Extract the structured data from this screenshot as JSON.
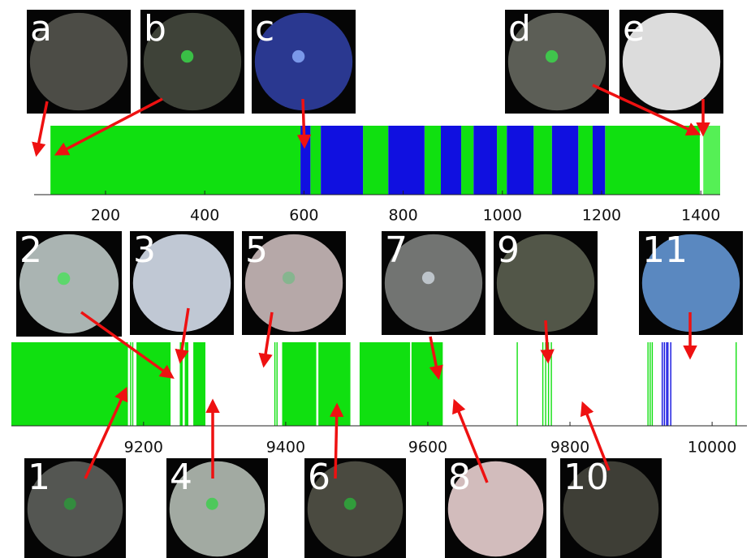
{
  "chart_data": [
    {
      "type": "timeline",
      "xlim": [
        56,
        1439
      ],
      "xticks": [
        200,
        400,
        600,
        800,
        1000,
        1200,
        1400
      ],
      "series": [
        {
          "color": "#10e010",
          "intervals": [
            [
              89,
              593
            ],
            [
              613,
              634
            ],
            [
              719,
              770
            ],
            [
              843,
              876
            ],
            [
              917,
              942
            ],
            [
              989,
              1009
            ],
            [
              1063,
              1100
            ],
            [
              1153,
              1182
            ],
            [
              1207,
              1398
            ]
          ]
        },
        {
          "color": "#1010e0",
          "intervals": [
            [
              593,
              613
            ],
            [
              634,
              719
            ],
            [
              770,
              843
            ],
            [
              876,
              917
            ],
            [
              942,
              989
            ],
            [
              1009,
              1063
            ],
            [
              1100,
              1153
            ],
            [
              1182,
              1207
            ]
          ]
        },
        {
          "color": "#55f055",
          "intervals": [
            [
              1405,
              1439
            ]
          ]
        }
      ],
      "annotations": [
        "a",
        "b",
        "c",
        "d",
        "e"
      ]
    },
    {
      "type": "timeline",
      "xlim": [
        9014,
        10049
      ],
      "xticks": [
        9200,
        9400,
        9600,
        9800,
        10000
      ],
      "series": [
        {
          "color": "#10e010",
          "intervals": [
            [
              9014,
              9178
            ],
            [
              9181,
              9182
            ],
            [
              9184,
              9185
            ],
            [
              9190,
              9238
            ],
            [
              9251,
              9255
            ],
            [
              9258,
              9263
            ],
            [
              9270,
              9287
            ],
            [
              9384,
              9385
            ],
            [
              9387,
              9388
            ],
            [
              9395,
              9443
            ],
            [
              9446,
              9491
            ],
            [
              9504,
              9575
            ],
            [
              9577,
              9621
            ],
            [
              9725,
              9726
            ],
            [
              9761,
              9762
            ],
            [
              9765,
              9766
            ],
            [
              9769,
              9770
            ],
            [
              9773,
              9774
            ],
            [
              9909,
              9910
            ],
            [
              9912,
              9913
            ],
            [
              9915,
              9916
            ],
            [
              10033,
              10034
            ]
          ]
        },
        {
          "color": "#1010e0",
          "intervals": [
            [
              9929,
              9930
            ],
            [
              9932,
              9933
            ],
            [
              9935,
              9936
            ],
            [
              9937,
              9938
            ],
            [
              9941,
              9942
            ]
          ]
        }
      ],
      "annotations": [
        "1",
        "2",
        "3",
        "4",
        "5",
        "6",
        "7",
        "8",
        "9",
        "10",
        "11"
      ]
    }
  ]
}
